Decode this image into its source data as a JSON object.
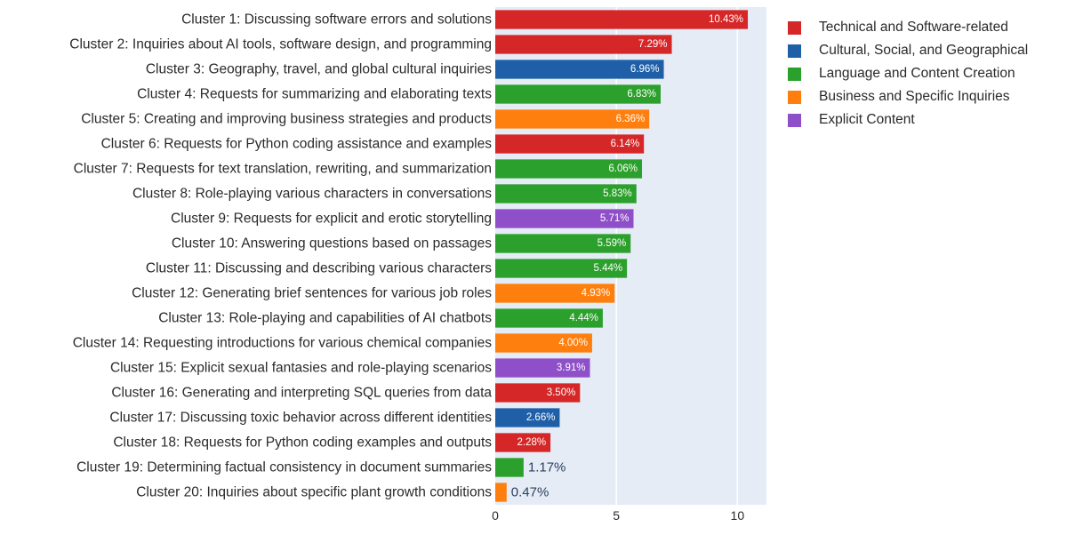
{
  "chart_data": {
    "type": "bar",
    "orientation": "horizontal",
    "title": "",
    "xlabel": "",
    "ylabel": "",
    "xlim": [
      0,
      11.2
    ],
    "xticks": [
      0,
      5,
      10
    ],
    "grid": true,
    "legend_position": "right",
    "legend": [
      {
        "name": "Technical and Software-related",
        "color": "#d62728"
      },
      {
        "name": "Cultural, Social, and Geographical",
        "color": "#1f5fa8"
      },
      {
        "name": "Language and Content Creation",
        "color": "#2ca02c"
      },
      {
        "name": "Business and Specific Inquiries",
        "color": "#ff7f0e"
      },
      {
        "name": "Explicit Content",
        "color": "#8e4fc8"
      }
    ],
    "categories": [
      "Cluster 1: Discussing software errors and solutions",
      "Cluster 2: Inquiries about AI tools, software design, and programming",
      "Cluster 3: Geography, travel, and global cultural inquiries",
      "Cluster 4: Requests for summarizing and elaborating texts",
      "Cluster 5: Creating and improving business strategies and products",
      "Cluster 6: Requests for Python coding assistance and examples",
      "Cluster 7: Requests for text translation, rewriting, and summarization",
      "Cluster 8: Role-playing various characters in conversations",
      "Cluster 9: Requests for explicit and erotic storytelling",
      "Cluster 10: Answering questions based on passages",
      "Cluster 11: Discussing and describing various characters",
      "Cluster 12: Generating brief sentences for various job roles",
      "Cluster 13: Role-playing and capabilities of AI chatbots",
      "Cluster 14: Requesting introductions for various chemical companies",
      "Cluster 15: Explicit sexual fantasies and role-playing scenarios",
      "Cluster 16: Generating and interpreting SQL queries from data",
      "Cluster 17: Discussing toxic behavior across different identities",
      "Cluster 18: Requests for Python coding examples and outputs",
      "Cluster 19: Determining factual consistency in document summaries",
      "Cluster 20: Inquiries about specific plant growth conditions"
    ],
    "values": [
      10.43,
      7.29,
      6.96,
      6.83,
      6.36,
      6.14,
      6.06,
      5.83,
      5.71,
      5.59,
      5.44,
      4.93,
      4.44,
      4.0,
      3.91,
      3.5,
      2.66,
      2.28,
      1.17,
      0.47
    ],
    "labels": [
      "10.43%",
      "7.29%",
      "6.96%",
      "6.83%",
      "6.36%",
      "6.14%",
      "6.06%",
      "5.83%",
      "5.71%",
      "5.59%",
      "5.44%",
      "4.93%",
      "4.44%",
      "4.00%",
      "3.91%",
      "3.50%",
      "2.66%",
      "2.28%",
      "1.17%",
      "0.47%"
    ],
    "groups": [
      0,
      0,
      1,
      2,
      3,
      0,
      2,
      2,
      4,
      2,
      2,
      3,
      2,
      3,
      4,
      0,
      1,
      0,
      2,
      3
    ]
  }
}
